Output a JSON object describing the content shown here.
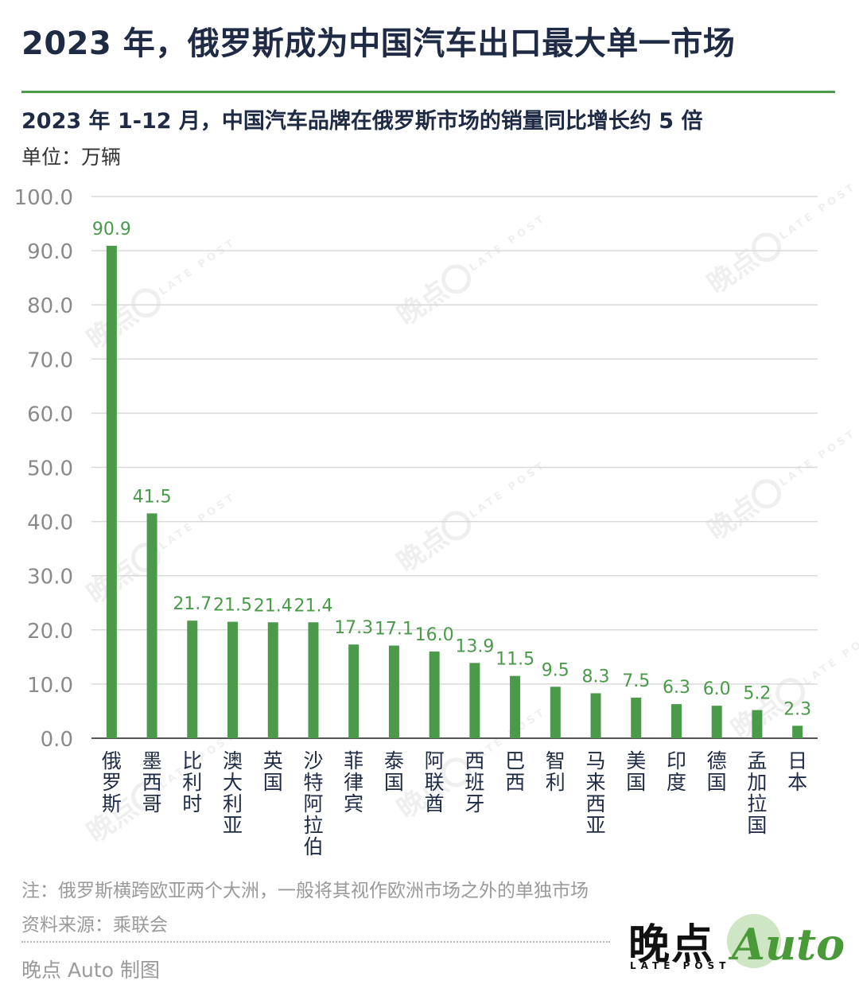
{
  "header": {
    "title": "2023 年，俄罗斯成为中国汽车出口最大单一市场",
    "subtitle": "2023 年 1-12 月，中国汽车品牌在俄罗斯市场的销量同比增长约 5 倍",
    "unit": "单位：万辆"
  },
  "footer": {
    "note": "注：俄罗斯横跨欧亚两个大洲，一般将其视作欧洲市场之外的单独市场",
    "source": "资料来源：乘联会",
    "credit": "晚点 Auto 制图"
  },
  "logo": {
    "cn": "晚点",
    "en": "LATE POST",
    "auto": "Auto",
    "color": "#4a9a3a"
  },
  "watermark": {
    "cn": "晚点",
    "en": "LATE POST"
  },
  "colors": {
    "bar": "#4a9a4a",
    "label": "#4a9a4a",
    "grid": "#d9d9d9",
    "tick": "#8a8a8a",
    "category": "#1f2a44"
  },
  "chart_data": {
    "type": "bar",
    "categories": [
      "俄罗斯",
      "墨西哥",
      "比利时",
      "澳大利亚",
      "英国",
      "沙特阿拉伯",
      "菲律宾",
      "泰国",
      "阿联酋",
      "西班牙",
      "巴西",
      "智利",
      "马来西亚",
      "美国",
      "印度",
      "德国",
      "孟加拉国",
      "日本"
    ],
    "values": [
      90.9,
      41.5,
      21.7,
      21.5,
      21.4,
      21.4,
      17.3,
      17.1,
      16.0,
      13.9,
      11.5,
      9.5,
      8.3,
      7.5,
      6.3,
      6.0,
      5.2,
      2.3
    ],
    "value_labels": [
      "90.9",
      "41.5",
      "21.7",
      "21.5",
      "21.4",
      "21.4",
      "17.3",
      "17.1",
      "16.0",
      "13.9",
      "11.5",
      "9.5",
      "8.3",
      "7.5",
      "6.3",
      "6.0",
      "5.2",
      "2.3"
    ],
    "yticks": [
      "0.0",
      "10.0",
      "20.0",
      "30.0",
      "40.0",
      "50.0",
      "60.0",
      "70.0",
      "80.0",
      "90.0",
      "100.0"
    ],
    "ylim": [
      0,
      100
    ],
    "grid": true
  }
}
